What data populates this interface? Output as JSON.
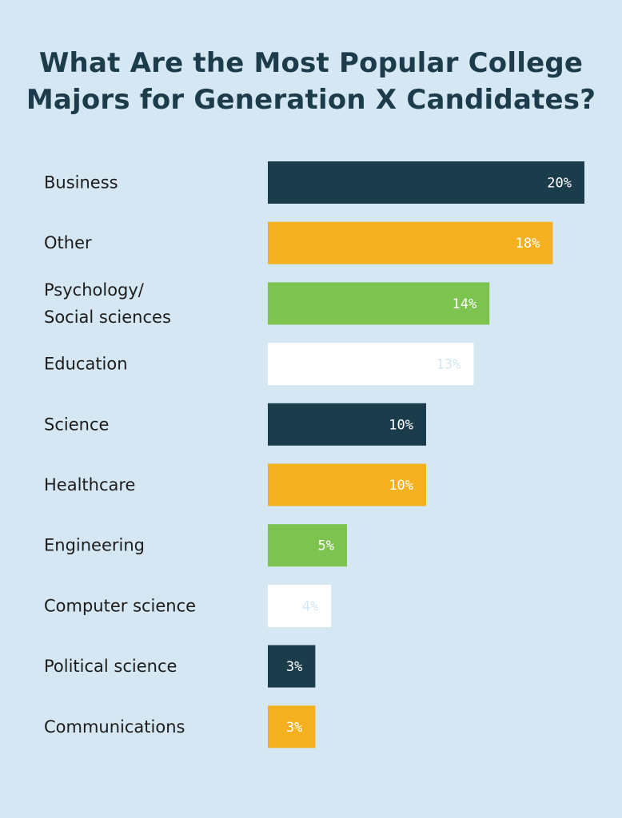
{
  "title_lines": [
    "What Are the Most Popular College",
    "Majors for Generation X Candidates?"
  ],
  "colors": {
    "background": "#d4e7f2",
    "title": "#1c3c4b",
    "label": "#1c1c1c",
    "navy": "#1a3c4b",
    "orange": "#f5b020",
    "green": "#7dc34f",
    "white": "#ffffff",
    "value_on_white": "#d4e7f2"
  },
  "chart_data": {
    "type": "bar",
    "orientation": "horizontal",
    "title": "What Are the Most Popular College Majors for Generation X Candidates?",
    "xlabel": "",
    "ylabel": "",
    "xlim": [
      0,
      20
    ],
    "grid": false,
    "legend": "none",
    "categories": [
      [
        "Business"
      ],
      [
        "Other"
      ],
      [
        "Psychology/",
        "Social sciences"
      ],
      [
        "Education"
      ],
      [
        "Science"
      ],
      [
        "Healthcare"
      ],
      [
        "Engineering"
      ],
      [
        "Computer science"
      ],
      [
        "Political science"
      ],
      [
        "Communications"
      ]
    ],
    "values": [
      20,
      18,
      14,
      13,
      10,
      10,
      5,
      4,
      3,
      3
    ],
    "value_labels": [
      "20%",
      "18%",
      "14%",
      "13%",
      "10%",
      "10%",
      "5%",
      "4%",
      "3%",
      "3%"
    ],
    "bar_colors": [
      "navy",
      "orange",
      "green",
      "white",
      "navy",
      "orange",
      "green",
      "white",
      "navy",
      "orange"
    ]
  }
}
